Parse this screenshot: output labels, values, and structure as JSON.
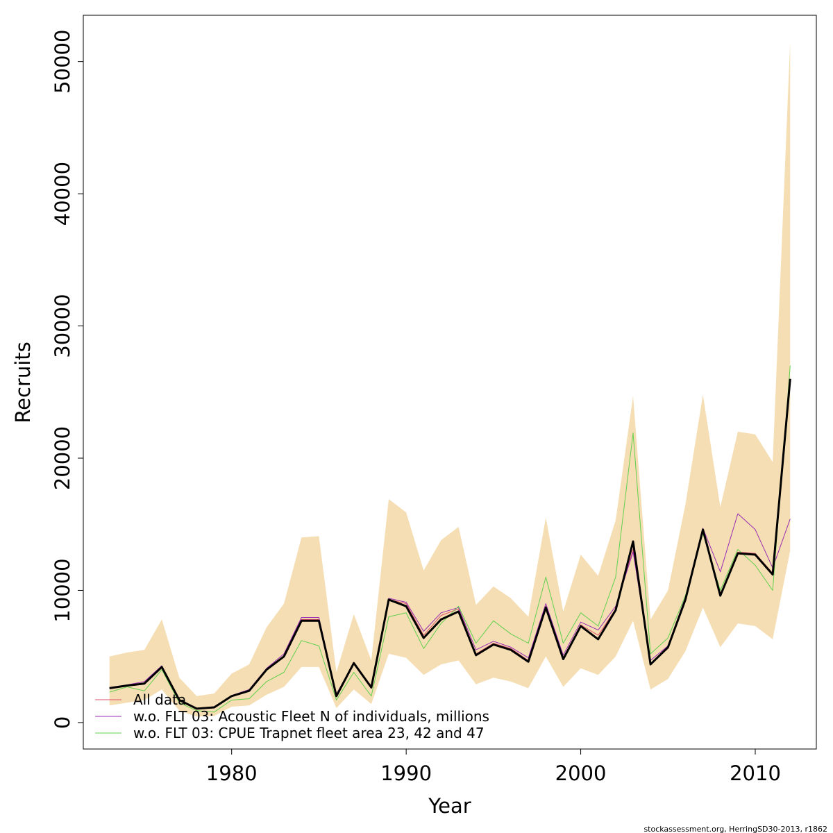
{
  "chart_data": {
    "type": "line",
    "title": "",
    "xlabel": "Year",
    "ylabel": "Recruits",
    "xlim": [
      1971.5,
      2013.5
    ],
    "ylim": [
      -2000,
      53500
    ],
    "x_ticks": [
      1980,
      1990,
      2000,
      2010
    ],
    "x_tick_labels": [
      "1980",
      "1990",
      "2000",
      "2010"
    ],
    "y_ticks": [
      0,
      10000,
      20000,
      30000,
      40000,
      50000
    ],
    "y_tick_labels": [
      "0",
      "10000",
      "20000",
      "30000",
      "40000",
      "50000"
    ],
    "grid": false,
    "legend_position": "bottom-left",
    "x": [
      1973,
      1974,
      1975,
      1976,
      1977,
      1978,
      1979,
      1980,
      1981,
      1982,
      1983,
      1984,
      1985,
      1986,
      1987,
      1988,
      1989,
      1990,
      1991,
      1992,
      1993,
      1994,
      1995,
      1996,
      1997,
      1998,
      1999,
      2000,
      2001,
      2002,
      2003,
      2004,
      2005,
      2006,
      2007,
      2008,
      2009,
      2010,
      2011,
      2012
    ],
    "confidence_band": {
      "color": "#f5deb3",
      "lower": [
        1300,
        1500,
        1700,
        2500,
        900,
        450,
        500,
        1200,
        1300,
        2100,
        2700,
        4200,
        4200,
        1100,
        2500,
        1400,
        5200,
        4900,
        3600,
        4400,
        4700,
        2900,
        3400,
        3100,
        2600,
        5000,
        2700,
        4100,
        3600,
        5000,
        7700,
        2500,
        3300,
        5400,
        8700,
        5700,
        7500,
        7300,
        6300,
        13000
      ],
      "upper": [
        5000,
        5300,
        5500,
        7800,
        3400,
        2000,
        2200,
        3700,
        4400,
        7200,
        9000,
        14000,
        14100,
        3800,
        8200,
        4700,
        16900,
        15900,
        11500,
        13800,
        14800,
        8900,
        10300,
        9400,
        8000,
        15500,
        8400,
        12700,
        11100,
        15300,
        24700,
        7800,
        10000,
        16500,
        24800,
        16300,
        22000,
        21800,
        19700,
        51500
      ]
    },
    "series": [
      {
        "name": "All data",
        "color": "#df536b",
        "width": 1,
        "values": [
          2600,
          2800,
          2950,
          4200,
          1700,
          1050,
          1150,
          2000,
          2400,
          4000,
          5000,
          7800,
          7800,
          2100,
          4500,
          2700,
          9300,
          9000,
          6600,
          8100,
          8600,
          5200,
          6000,
          5600,
          4700,
          8800,
          4900,
          7400,
          6600,
          8600,
          13100,
          4400,
          5600,
          9400,
          14600,
          9700,
          12900,
          12800,
          11300,
          26000
        ]
      },
      {
        "name": "w.o. FLT 03: Acoustic Fleet   N of individuals, millions",
        "color": "#9a2bb3",
        "width": 1,
        "values": [
          2650,
          2850,
          3100,
          4300,
          1750,
          1100,
          1200,
          2050,
          2500,
          4100,
          5200,
          7950,
          7950,
          2150,
          4550,
          2750,
          9400,
          9100,
          6900,
          8300,
          8700,
          5500,
          6150,
          5700,
          4900,
          9000,
          5100,
          7600,
          7000,
          8800,
          12900,
          4700,
          5800,
          9500,
          14700,
          11400,
          15800,
          14600,
          11700,
          15400
        ]
      },
      {
        "name": "w.o. FLT 03: CPUE Trapnet fleet area 23, 42 and 47",
        "color": "#61d04f",
        "width": 1,
        "values": [
          2300,
          2700,
          2400,
          4000,
          1500,
          900,
          800,
          1700,
          1800,
          3100,
          3800,
          6200,
          5800,
          1700,
          3800,
          2000,
          8000,
          8300,
          5600,
          7500,
          8800,
          6000,
          7700,
          6700,
          6000,
          11000,
          6000,
          8300,
          7300,
          11000,
          21900,
          5200,
          6400,
          9600,
          14300,
          10000,
          13100,
          11900,
          10000,
          27000
        ]
      },
      {
        "name": "",
        "color": "#000000",
        "width": 3,
        "values": [
          2600,
          2800,
          2950,
          4200,
          1700,
          1050,
          1150,
          2000,
          2400,
          4000,
          5000,
          7700,
          7700,
          2000,
          4500,
          2650,
          9300,
          8800,
          6400,
          7800,
          8400,
          5100,
          5900,
          5500,
          4600,
          8700,
          4800,
          7300,
          6300,
          8500,
          13700,
          4400,
          5700,
          9300,
          14600,
          9600,
          12800,
          12700,
          11200,
          26000
        ]
      }
    ],
    "legend": {
      "entries": [
        {
          "label": "All data",
          "color": "#df536b"
        },
        {
          "label": "w.o. FLT 03: Acoustic Fleet   N of individuals, millions",
          "color": "#9a2bb3"
        },
        {
          "label": "w.o. FLT 03: CPUE Trapnet fleet area 23, 42 and 47",
          "color": "#61d04f"
        }
      ]
    }
  },
  "footer": "stockassessment.org, HerringSD30-2013, r1862"
}
